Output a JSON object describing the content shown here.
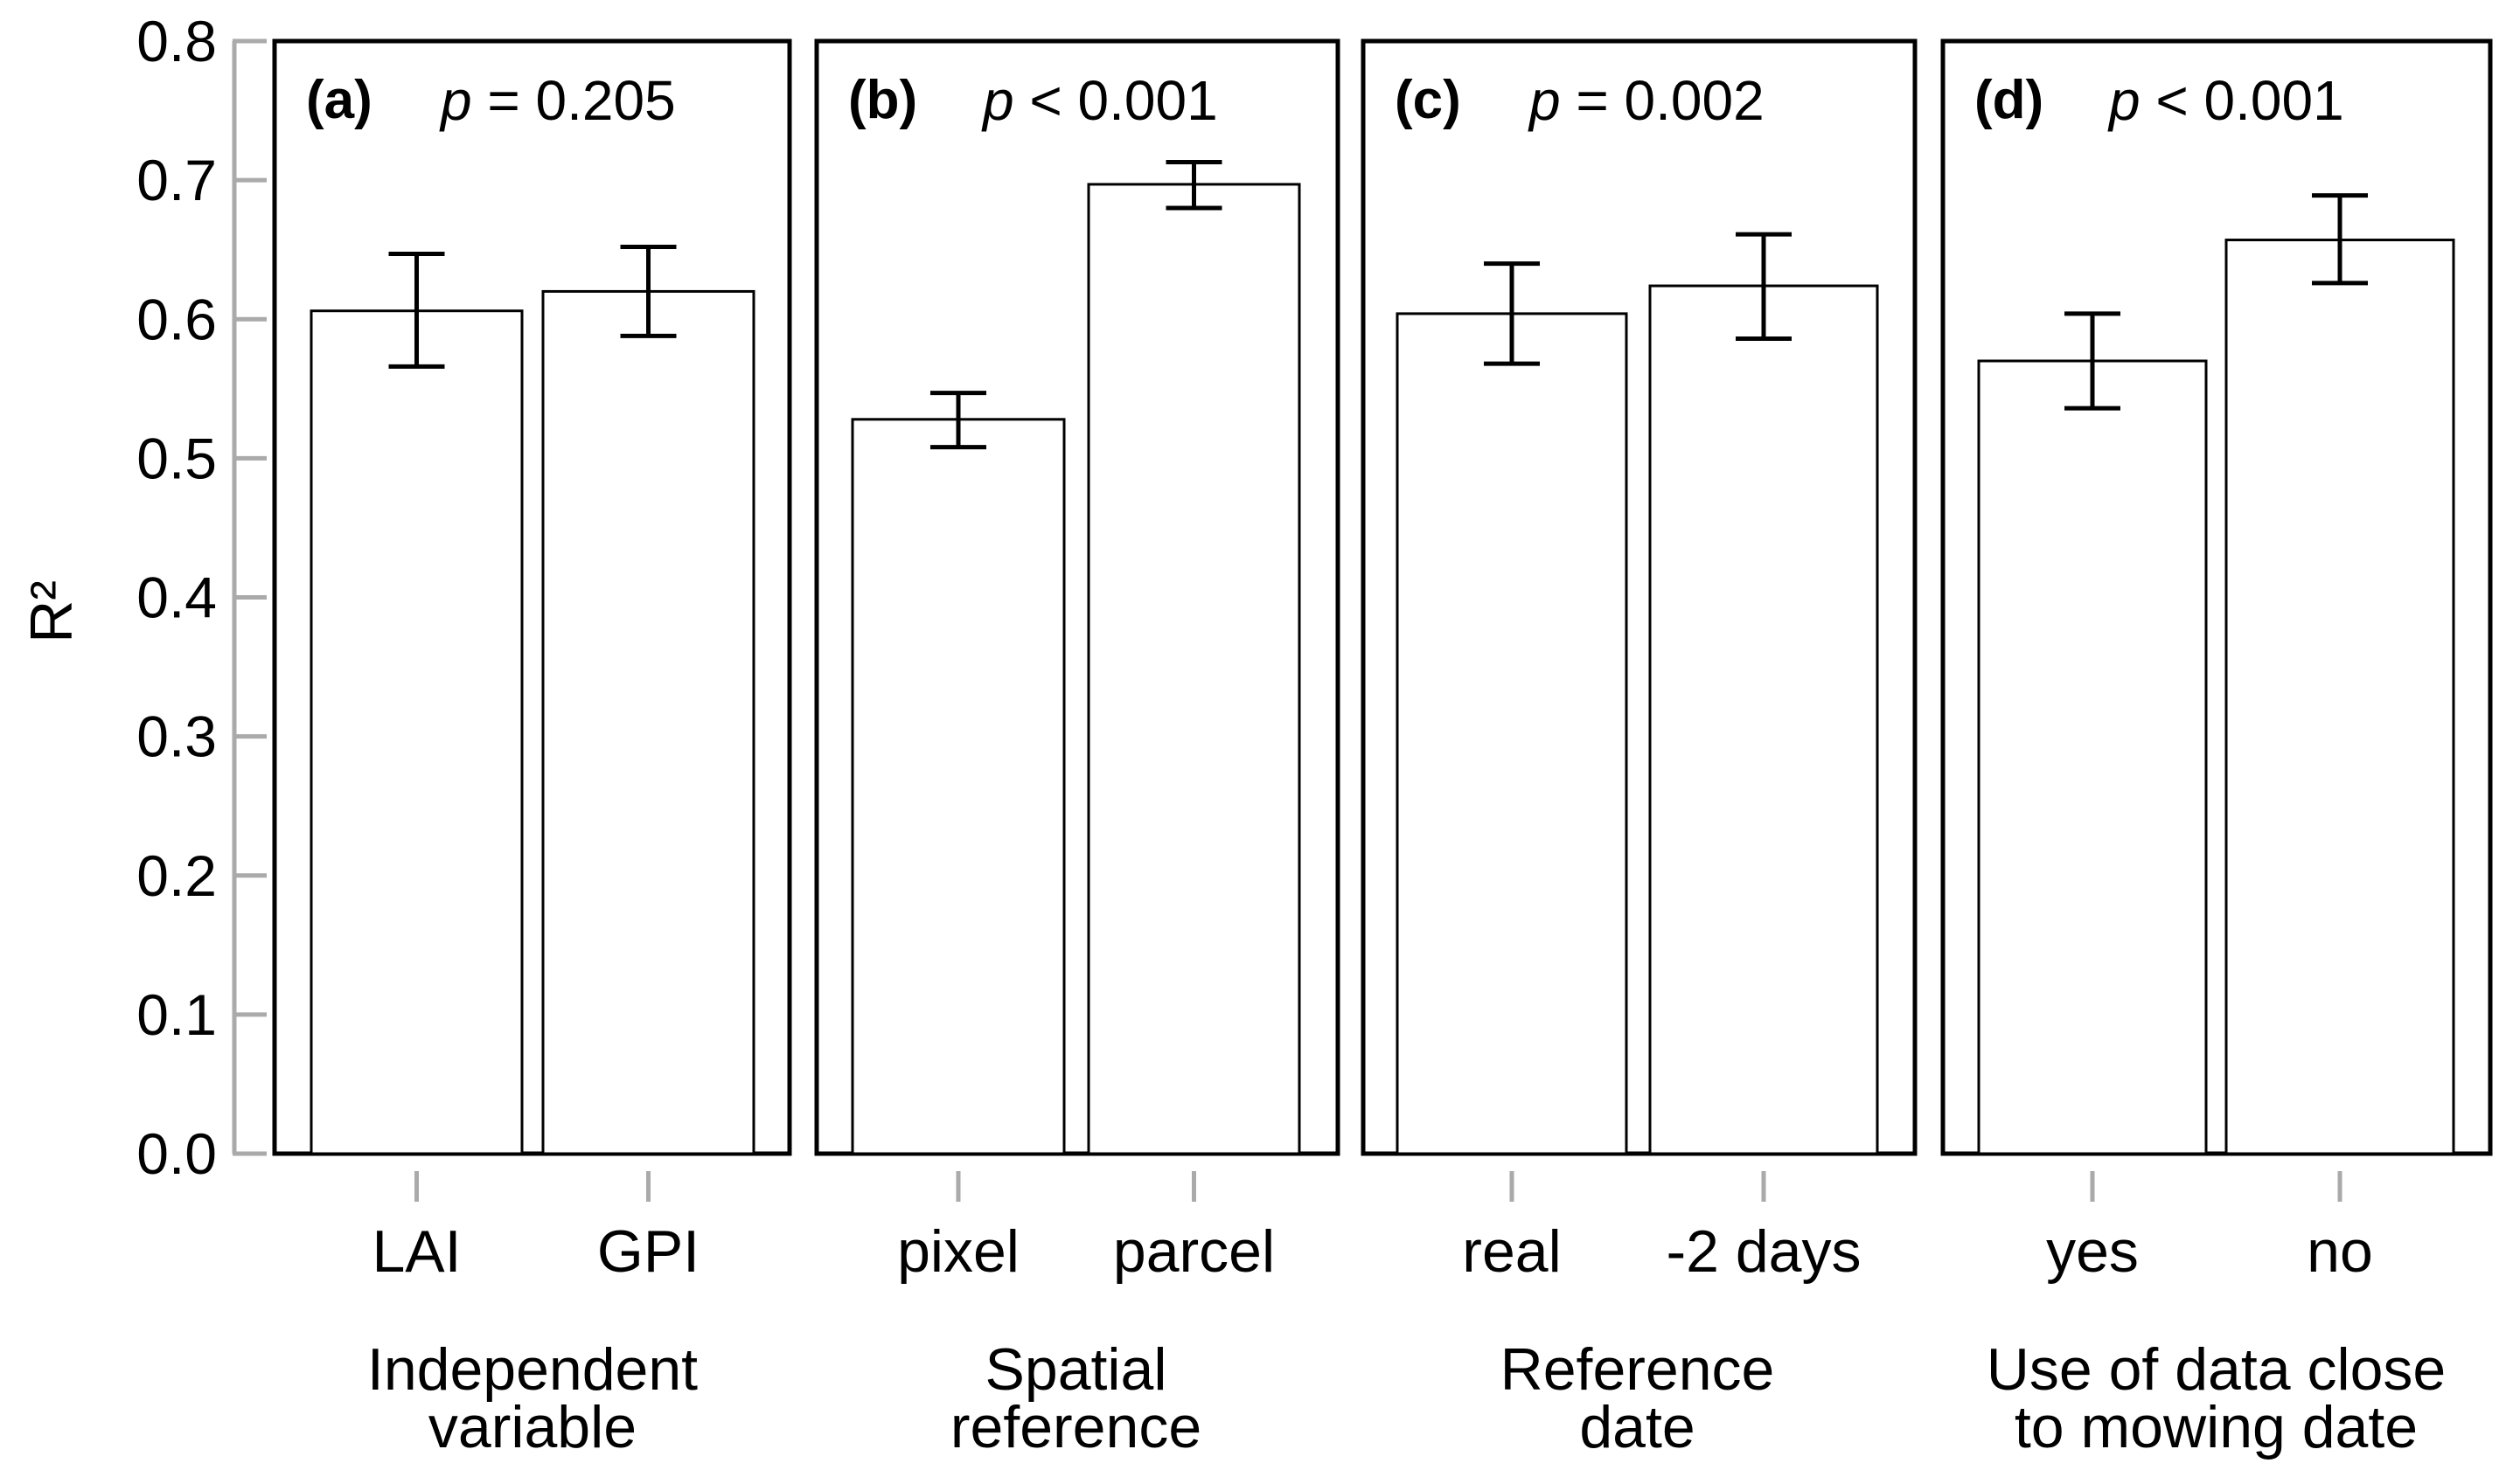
{
  "chart_data": {
    "type": "bar",
    "ylabel": "R²",
    "ylim": [
      0.0,
      0.8
    ],
    "yticks": [
      "0.0",
      "0.1",
      "0.2",
      "0.3",
      "0.4",
      "0.5",
      "0.6",
      "0.7",
      "0.8"
    ],
    "grid": false,
    "bar_color": "#ffffff",
    "edge_color": "#000000",
    "axis_tick_color": "#aaaaaa",
    "panels": [
      {
        "letter": "(a)",
        "p_symbol": "p",
        "p_rest": " = 0.205",
        "group_label": [
          "Independent",
          "variable"
        ],
        "categories": [
          "LAI",
          "GPI"
        ],
        "values": [
          0.606,
          0.62
        ],
        "error_low": [
          0.566,
          0.588
        ],
        "error_high": [
          0.647,
          0.652
        ]
      },
      {
        "letter": "(b)",
        "p_symbol": "p",
        "p_rest": " < 0.001",
        "group_label": [
          "Spatial",
          "reference"
        ],
        "categories": [
          "pixel",
          "parcel"
        ],
        "values": [
          0.528,
          0.697
        ],
        "error_low": [
          0.508,
          0.68
        ],
        "error_high": [
          0.547,
          0.713
        ]
      },
      {
        "letter": "(c)",
        "p_symbol": "p",
        "p_rest": " = 0.002",
        "group_label": [
          "Reference",
          "date"
        ],
        "categories": [
          "real",
          "-2 days"
        ],
        "values": [
          0.604,
          0.624
        ],
        "error_low": [
          0.568,
          0.586
        ],
        "error_high": [
          0.64,
          0.661
        ]
      },
      {
        "letter": "(d)",
        "p_symbol": "p",
        "p_rest": " < 0.001",
        "group_label": [
          "Use of data close",
          "to mowing date"
        ],
        "categories": [
          "yes",
          "no"
        ],
        "values": [
          0.57,
          0.657
        ],
        "error_low": [
          0.536,
          0.626
        ],
        "error_high": [
          0.604,
          0.689
        ]
      }
    ]
  }
}
